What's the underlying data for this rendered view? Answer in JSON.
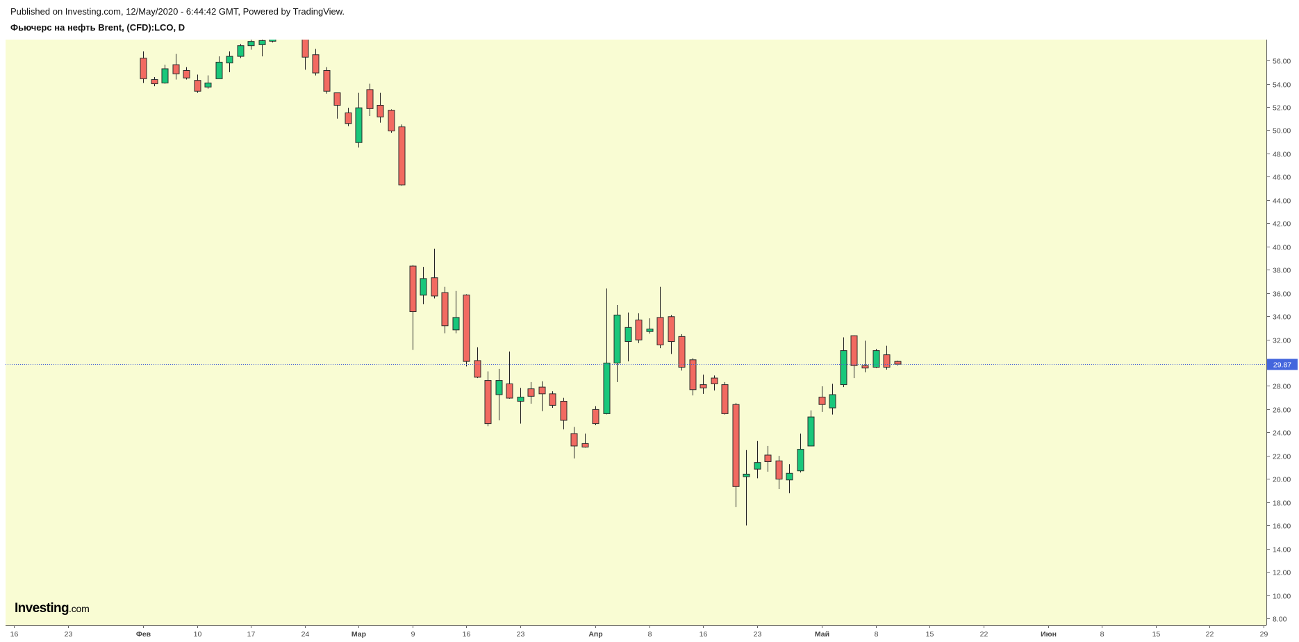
{
  "header": {
    "published": "Published on Investing.com, 12/May/2020 - 6:44:42 GMT, Powered by TradingView."
  },
  "logo": {
    "word": "Investing",
    "suffix": ".com"
  },
  "colors": {
    "background": "#f9fcd3",
    "up": "#19c77b",
    "down": "#f26a61",
    "outline": "#2a2a2a",
    "wick": "#222222",
    "price_line": "#3f5fd8",
    "price_label": "#4466dd",
    "axis": "#666666",
    "axis_text": "#444444"
  },
  "chart_data": {
    "type": "candlestick",
    "title": "Фьючерс на нефть Brent, (CFD):LCO, D",
    "xlabel": "",
    "ylabel": "",
    "y_axis_position": "right",
    "grid": false,
    "ylim": [
      7.4,
      57.8
    ],
    "y_ticks": [
      "56.00",
      "54.00",
      "52.00",
      "50.00",
      "48.00",
      "46.00",
      "44.00",
      "42.00",
      "40.00",
      "38.00",
      "36.00",
      "34.00",
      "32.00",
      "30.00",
      "28.00",
      "26.00",
      "24.00",
      "22.00",
      "20.00",
      "18.00",
      "16.00",
      "14.00",
      "12.00",
      "10.00",
      "8.00"
    ],
    "x_ticks": [
      {
        "label": "16",
        "date": "2020-01-16"
      },
      {
        "label": "23",
        "date": "2020-01-23"
      },
      {
        "label": "Фев",
        "date": "2020-02-03"
      },
      {
        "label": "10",
        "date": "2020-02-10"
      },
      {
        "label": "17",
        "date": "2020-02-17"
      },
      {
        "label": "24",
        "date": "2020-02-24"
      },
      {
        "label": "Мар",
        "date": "2020-03-02"
      },
      {
        "label": "9",
        "date": "2020-03-09"
      },
      {
        "label": "16",
        "date": "2020-03-16"
      },
      {
        "label": "23",
        "date": "2020-03-23"
      },
      {
        "label": "Апр",
        "date": "2020-04-01"
      },
      {
        "label": "8",
        "date": "2020-04-08"
      },
      {
        "label": "16",
        "date": "2020-04-16"
      },
      {
        "label": "23",
        "date": "2020-04-23"
      },
      {
        "label": "Май",
        "date": "2020-05-01"
      },
      {
        "label": "8",
        "date": "2020-05-08"
      },
      {
        "label": "15",
        "date": "2020-05-15"
      },
      {
        "label": "22",
        "date": "2020-05-22"
      },
      {
        "label": "Июн",
        "date": "2020-06-01"
      },
      {
        "label": "8",
        "date": "2020-06-08"
      },
      {
        "label": "15",
        "date": "2020-06-15"
      },
      {
        "label": "22",
        "date": "2020-06-22"
      },
      {
        "label": "29",
        "date": "2020-06-29"
      }
    ],
    "price_line": {
      "value": 29.87,
      "label": "29.87"
    },
    "candles": [
      {
        "date": "2020-02-03",
        "open": 56.2,
        "high": 56.78,
        "low": 54.07,
        "close": 54.43
      },
      {
        "date": "2020-02-04",
        "open": 54.36,
        "high": 54.57,
        "low": 53.79,
        "close": 54.0
      },
      {
        "date": "2020-02-05",
        "open": 54.07,
        "high": 55.64,
        "low": 54.0,
        "close": 55.29
      },
      {
        "date": "2020-02-06",
        "open": 55.64,
        "high": 56.57,
        "low": 54.36,
        "close": 54.86
      },
      {
        "date": "2020-02-07",
        "open": 55.14,
        "high": 55.43,
        "low": 54.36,
        "close": 54.5
      },
      {
        "date": "2020-02-10",
        "open": 54.29,
        "high": 54.79,
        "low": 53.22,
        "close": 53.36
      },
      {
        "date": "2020-02-11",
        "open": 53.72,
        "high": 54.72,
        "low": 53.57,
        "close": 54.07
      },
      {
        "date": "2020-02-12",
        "open": 54.43,
        "high": 56.36,
        "low": 54.43,
        "close": 55.86
      },
      {
        "date": "2020-02-13",
        "open": 55.79,
        "high": 56.78,
        "low": 55.0,
        "close": 56.36
      },
      {
        "date": "2020-02-14",
        "open": 56.36,
        "high": 57.43,
        "low": 56.21,
        "close": 57.28
      },
      {
        "date": "2020-02-17",
        "open": 57.28,
        "high": 57.9,
        "low": 56.93,
        "close": 57.64
      },
      {
        "date": "2020-02-18",
        "open": 57.36,
        "high": 58.0,
        "low": 56.36,
        "close": 57.72
      },
      {
        "date": "2020-02-19",
        "open": 57.66,
        "high": 59.3,
        "low": 57.55,
        "close": 59.0
      },
      {
        "date": "2020-02-24",
        "open": 58.3,
        "high": 58.6,
        "low": 55.21,
        "close": 56.29
      },
      {
        "date": "2020-02-25",
        "open": 56.5,
        "high": 57.0,
        "low": 54.71,
        "close": 54.93
      },
      {
        "date": "2020-02-26",
        "open": 55.14,
        "high": 55.43,
        "low": 53.15,
        "close": 53.36
      },
      {
        "date": "2020-02-27",
        "open": 53.22,
        "high": 53.22,
        "low": 51.0,
        "close": 52.15
      },
      {
        "date": "2020-02-28",
        "open": 51.5,
        "high": 51.93,
        "low": 50.36,
        "close": 50.58
      },
      {
        "date": "2020-03-02",
        "open": 48.94,
        "high": 53.22,
        "low": 48.51,
        "close": 51.93
      },
      {
        "date": "2020-03-03",
        "open": 53.5,
        "high": 54.0,
        "low": 51.22,
        "close": 51.86
      },
      {
        "date": "2020-03-04",
        "open": 52.15,
        "high": 53.22,
        "low": 50.65,
        "close": 51.15
      },
      {
        "date": "2020-03-05",
        "open": 51.72,
        "high": 51.8,
        "low": 49.79,
        "close": 49.94
      },
      {
        "date": "2020-03-06",
        "open": 50.29,
        "high": 50.5,
        "low": 45.23,
        "close": 45.3
      },
      {
        "date": "2020-03-09",
        "open": 38.31,
        "high": 38.4,
        "low": 31.1,
        "close": 34.39
      },
      {
        "date": "2020-03-10",
        "open": 35.81,
        "high": 38.24,
        "low": 35.03,
        "close": 37.24
      },
      {
        "date": "2020-03-11",
        "open": 37.31,
        "high": 39.81,
        "low": 35.53,
        "close": 35.74
      },
      {
        "date": "2020-03-12",
        "open": 36.03,
        "high": 36.53,
        "low": 32.53,
        "close": 33.18
      },
      {
        "date": "2020-03-13",
        "open": 32.82,
        "high": 36.17,
        "low": 32.53,
        "close": 33.89
      },
      {
        "date": "2020-03-16",
        "open": 35.82,
        "high": 35.89,
        "low": 29.68,
        "close": 30.11
      },
      {
        "date": "2020-03-17",
        "open": 30.18,
        "high": 31.32,
        "low": 28.68,
        "close": 28.75
      },
      {
        "date": "2020-03-18",
        "open": 28.47,
        "high": 29.25,
        "low": 24.54,
        "close": 24.76
      },
      {
        "date": "2020-03-19",
        "open": 27.25,
        "high": 29.47,
        "low": 25.04,
        "close": 28.47
      },
      {
        "date": "2020-03-20",
        "open": 28.18,
        "high": 30.96,
        "low": 26.9,
        "close": 26.95
      },
      {
        "date": "2020-03-23",
        "open": 26.68,
        "high": 27.83,
        "low": 24.76,
        "close": 27.04
      },
      {
        "date": "2020-03-24",
        "open": 27.75,
        "high": 28.33,
        "low": 26.47,
        "close": 27.11
      },
      {
        "date": "2020-03-25",
        "open": 27.9,
        "high": 28.4,
        "low": 25.83,
        "close": 27.32
      },
      {
        "date": "2020-03-26",
        "open": 27.32,
        "high": 27.54,
        "low": 26.11,
        "close": 26.33
      },
      {
        "date": "2020-03-27",
        "open": 26.68,
        "high": 26.97,
        "low": 24.26,
        "close": 25.04
      },
      {
        "date": "2020-03-30",
        "open": 23.9,
        "high": 24.47,
        "low": 21.76,
        "close": 22.83
      },
      {
        "date": "2020-03-31",
        "open": 23.04,
        "high": 23.9,
        "low": 22.69,
        "close": 22.74
      },
      {
        "date": "2020-04-01",
        "open": 25.97,
        "high": 26.26,
        "low": 24.62,
        "close": 24.76
      },
      {
        "date": "2020-04-02",
        "open": 25.61,
        "high": 36.38,
        "low": 25.55,
        "close": 29.97
      },
      {
        "date": "2020-04-03",
        "open": 29.97,
        "high": 34.96,
        "low": 28.33,
        "close": 34.1
      },
      {
        "date": "2020-04-06",
        "open": 31.82,
        "high": 34.32,
        "low": 30.11,
        "close": 33.03
      },
      {
        "date": "2020-04-07",
        "open": 33.67,
        "high": 34.25,
        "low": 31.68,
        "close": 31.96
      },
      {
        "date": "2020-04-08",
        "open": 32.68,
        "high": 33.82,
        "low": 32.5,
        "close": 32.9
      },
      {
        "date": "2020-04-09",
        "open": 33.89,
        "high": 36.53,
        "low": 31.25,
        "close": 31.53
      },
      {
        "date": "2020-04-13",
        "open": 33.96,
        "high": 34.1,
        "low": 30.75,
        "close": 31.82
      },
      {
        "date": "2020-04-14",
        "open": 32.25,
        "high": 32.46,
        "low": 29.32,
        "close": 29.61
      },
      {
        "date": "2020-04-15",
        "open": 30.25,
        "high": 30.39,
        "low": 27.18,
        "close": 27.68
      },
      {
        "date": "2020-04-16",
        "open": 28.11,
        "high": 28.97,
        "low": 27.32,
        "close": 27.83
      },
      {
        "date": "2020-04-17",
        "open": 28.68,
        "high": 28.9,
        "low": 27.61,
        "close": 28.18
      },
      {
        "date": "2020-04-20",
        "open": 28.11,
        "high": 28.33,
        "low": 25.54,
        "close": 25.61
      },
      {
        "date": "2020-04-21",
        "open": 26.4,
        "high": 26.54,
        "low": 17.57,
        "close": 19.34
      },
      {
        "date": "2020-04-22",
        "open": 20.19,
        "high": 22.48,
        "low": 15.99,
        "close": 20.41
      },
      {
        "date": "2020-04-23",
        "open": 20.84,
        "high": 23.26,
        "low": 20.05,
        "close": 21.41
      },
      {
        "date": "2020-04-24",
        "open": 22.05,
        "high": 22.83,
        "low": 20.62,
        "close": 21.48
      },
      {
        "date": "2020-04-27",
        "open": 21.55,
        "high": 21.98,
        "low": 19.12,
        "close": 19.98
      },
      {
        "date": "2020-04-28",
        "open": 19.91,
        "high": 21.26,
        "low": 18.77,
        "close": 20.48
      },
      {
        "date": "2020-04-29",
        "open": 20.69,
        "high": 23.9,
        "low": 20.55,
        "close": 22.55
      },
      {
        "date": "2020-04-30",
        "open": 22.83,
        "high": 25.9,
        "low": 22.8,
        "close": 25.33
      },
      {
        "date": "2020-05-01",
        "open": 27.04,
        "high": 27.97,
        "low": 25.76,
        "close": 26.4
      },
      {
        "date": "2020-05-04",
        "open": 26.11,
        "high": 28.18,
        "low": 25.54,
        "close": 27.25
      },
      {
        "date": "2020-05-05",
        "open": 28.11,
        "high": 32.18,
        "low": 27.9,
        "close": 31.04
      },
      {
        "date": "2020-05-06",
        "open": 32.32,
        "high": 32.35,
        "low": 28.68,
        "close": 29.75
      },
      {
        "date": "2020-05-07",
        "open": 29.75,
        "high": 31.89,
        "low": 29.18,
        "close": 29.54
      },
      {
        "date": "2020-05-08",
        "open": 29.61,
        "high": 31.18,
        "low": 29.54,
        "close": 31.04
      },
      {
        "date": "2020-05-11",
        "open": 30.68,
        "high": 31.46,
        "low": 29.4,
        "close": 29.61
      },
      {
        "date": "2020-05-12",
        "open": 30.11,
        "high": 30.18,
        "low": 29.75,
        "close": 29.87
      }
    ]
  }
}
